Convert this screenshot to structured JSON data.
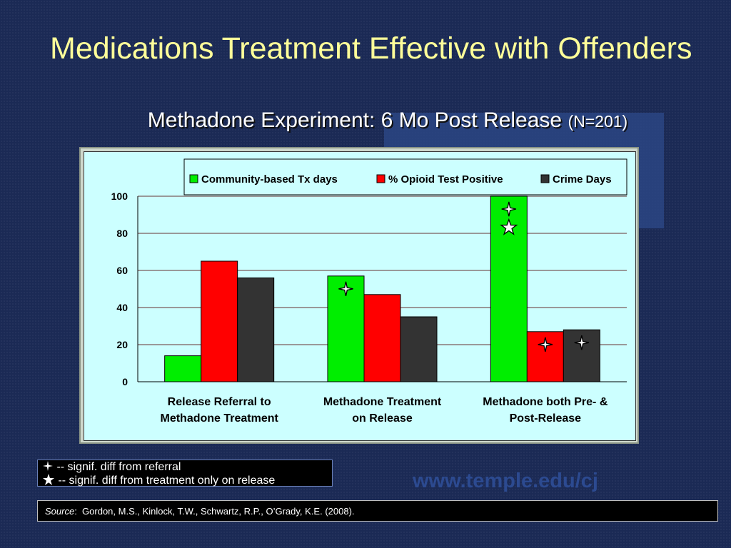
{
  "slide": {
    "title": "Medications Treatment Effective with Offenders",
    "subtitle_main": "Methadone Experiment: 6 Mo Post Release ",
    "subtitle_n": "(N=201)",
    "watermark": "www.temple.edu/cj"
  },
  "legend_notes": {
    "sparkle_text": "-- signif. diff from referral",
    "star_text": "-- signif. diff from treatment only on release"
  },
  "source": {
    "label": "Source",
    "text": "Gordon, M.S., Kinlock, T.W., Schwartz, R.P., O’Grady, K.E. (2008)."
  },
  "chart_data": {
    "type": "bar",
    "categories": [
      [
        "Release Referral to",
        "Methadone Treatment"
      ],
      [
        "Methadone Treatment",
        "on Release"
      ],
      [
        "Methadone both Pre- &",
        "Post-Release"
      ]
    ],
    "series": [
      {
        "name": "Community-based Tx days",
        "color": "#00ee00",
        "values": [
          14,
          57,
          100
        ]
      },
      {
        "name": "% Opioid Test Positive",
        "color": "#ff0000",
        "values": [
          65,
          47,
          27
        ]
      },
      {
        "name": "Crime Days",
        "color": "#333333",
        "values": [
          56,
          35,
          28
        ]
      }
    ],
    "ylim": [
      0,
      100
    ],
    "yticks": [
      0,
      20,
      40,
      60,
      80,
      100
    ],
    "grid": true,
    "legend_position": "top",
    "markers": [
      {
        "category": 1,
        "series": 0,
        "symbol": "sparkle"
      },
      {
        "category": 2,
        "series": 0,
        "symbol": "sparkle"
      },
      {
        "category": 2,
        "series": 0,
        "symbol": "star"
      },
      {
        "category": 2,
        "series": 1,
        "symbol": "sparkle"
      },
      {
        "category": 2,
        "series": 2,
        "symbol": "sparkle"
      }
    ]
  }
}
